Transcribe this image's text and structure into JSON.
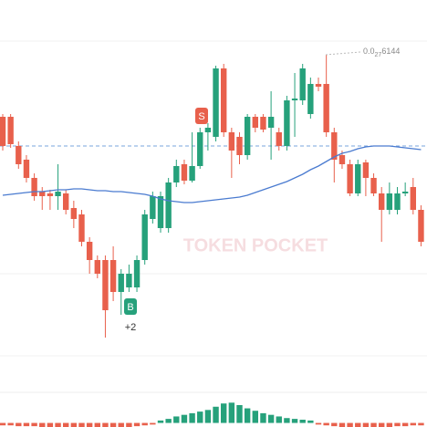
{
  "chart_data": {
    "type": "candlestick",
    "open": [
      272,
      272,
      240,
      225,
      205,
      190,
      188,
      185,
      188,
      172,
      165,
      135,
      115,
      115,
      115,
      80,
      85,
      85,
      115,
      160,
      150,
      150,
      200,
      220,
      202,
      218,
      255,
      250,
      325,
      255,
      250,
      230,
      272,
      272,
      260,
      255,
      240,
      290,
      290,
      275,
      308,
      308,
      255,
      230,
      220,
      188,
      222,
      205,
      188,
      170,
      170,
      188,
      195,
      170
    ],
    "high": [
      275,
      275,
      245,
      230,
      210,
      195,
      192,
      220,
      192,
      180,
      170,
      140,
      120,
      120,
      130,
      105,
      110,
      120,
      170,
      190,
      190,
      205,
      225,
      225,
      255,
      260,
      265,
      328,
      330,
      260,
      255,
      275,
      275,
      275,
      300,
      260,
      295,
      320,
      330,
      315,
      315,
      340,
      260,
      235,
      225,
      225,
      225,
      210,
      195,
      200,
      195,
      200,
      205,
      175
    ],
    "low": [
      235,
      238,
      215,
      200,
      180,
      170,
      170,
      170,
      165,
      150,
      130,
      100,
      95,
      30,
      70,
      55,
      80,
      80,
      110,
      155,
      145,
      145,
      195,
      198,
      200,
      215,
      235,
      245,
      250,
      205,
      220,
      225,
      255,
      255,
      225,
      235,
      235,
      250,
      285,
      270,
      300,
      250,
      200,
      215,
      185,
      185,
      185,
      185,
      135,
      165,
      165,
      185,
      165,
      130
    ],
    "close": [
      240,
      242,
      220,
      205,
      185,
      185,
      185,
      190,
      170,
      160,
      135,
      115,
      100,
      60,
      80,
      100,
      100,
      115,
      165,
      185,
      185,
      200,
      218,
      202,
      218,
      255,
      260,
      325,
      255,
      235,
      230,
      272,
      260,
      258,
      272,
      240,
      290,
      292,
      325,
      308,
      305,
      255,
      225,
      220,
      188,
      220,
      205,
      188,
      170,
      188,
      188,
      190,
      170,
      135
    ],
    "up_color": "#26a17b",
    "down_color": "#e8604c",
    "ma": {
      "color": "#4a7bd0",
      "values": [
        186,
        187,
        188,
        189,
        190,
        190,
        191,
        192,
        192,
        193,
        193,
        192,
        191,
        191,
        190,
        190,
        189,
        188,
        187,
        185,
        182,
        180,
        179,
        178,
        178,
        179,
        180,
        181,
        182,
        183,
        184,
        186,
        189,
        192,
        195,
        198,
        201,
        205,
        209,
        214,
        218,
        223,
        228,
        232,
        234,
        237,
        239,
        240,
        240,
        240,
        239,
        238,
        237,
        236
      ]
    },
    "ref_price": 240,
    "ylim": [
      0,
      400
    ],
    "macd": {
      "values": [
        -3,
        -3,
        -4,
        -4,
        -4,
        -5,
        -5,
        -5,
        -5,
        -5,
        -6,
        -6,
        -6,
        -6,
        -6,
        -5,
        -5,
        -4,
        -3,
        -2,
        3,
        5,
        8,
        10,
        12,
        14,
        16,
        20,
        24,
        25,
        22,
        18,
        15,
        12,
        10,
        8,
        6,
        5,
        4,
        3,
        -2,
        -3,
        -4,
        -5,
        -6,
        -6,
        -6,
        -6,
        -5,
        -5,
        -4,
        -4,
        -3,
        -3
      ],
      "ylim": [
        -5,
        40
      ]
    },
    "max_label": {
      "prefix": "0.0",
      "subscript": "27",
      "digits": "6144"
    },
    "sell_badge": "S",
    "buy_badge": "B",
    "buy_note": "+2",
    "watermark": "TOKEN POCKET"
  }
}
